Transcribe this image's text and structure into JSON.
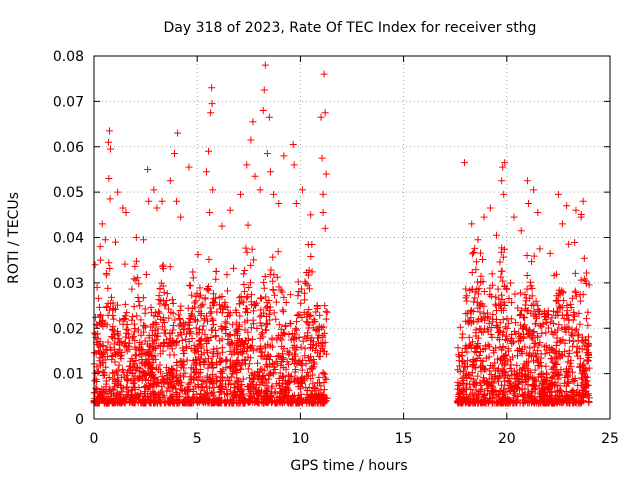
{
  "chart_data": {
    "type": "scatter",
    "title": "Day 318 of 2023, Rate Of TEC Index for receiver sthg",
    "xlabel": "GPS time / hours",
    "ylabel": "ROTI / TECUs",
    "xlim": [
      0,
      25
    ],
    "ylim": [
      0,
      0.08
    ],
    "x_ticks": [
      0,
      5,
      10,
      15,
      20,
      25
    ],
    "y_ticks": [
      0,
      0.01,
      0.02,
      0.03,
      0.04,
      0.05,
      0.06,
      0.07,
      0.08
    ],
    "x_tick_labels": [
      "0",
      "5",
      "10",
      "15",
      "20",
      "25"
    ],
    "y_tick_labels": [
      "0",
      "0.01",
      "0.02",
      "0.03",
      "0.04",
      "0.05",
      "0.06",
      "0.07",
      "0.08"
    ],
    "grid": true,
    "marker": "+",
    "marker_color": "#ff0000",
    "data_gap_hours": [
      11.3,
      17.6
    ],
    "series": [
      {
        "name": "ROTI",
        "points": [
          [
            0.05,
            0.034
          ],
          [
            0.15,
            0.029
          ],
          [
            0.3,
            0.038
          ],
          [
            0.4,
            0.043
          ],
          [
            0.55,
            0.0395
          ],
          [
            0.7,
            0.061
          ],
          [
            0.75,
            0.0635
          ],
          [
            0.8,
            0.0595
          ],
          [
            0.72,
            0.053
          ],
          [
            0.78,
            0.0485
          ],
          [
            1.15,
            0.05
          ],
          [
            1.4,
            0.0465
          ],
          [
            1.55,
            0.0455
          ],
          [
            2.05,
            0.04
          ],
          [
            2.4,
            0.0395
          ],
          [
            2.6,
            0.055
          ],
          [
            2.65,
            0.048
          ],
          [
            2.9,
            0.0505
          ],
          [
            3.05,
            0.0465
          ],
          [
            3.3,
            0.048
          ],
          [
            3.7,
            0.0525
          ],
          [
            3.9,
            0.0585
          ],
          [
            4.05,
            0.063
          ],
          [
            4.0,
            0.048
          ],
          [
            4.2,
            0.0445
          ],
          [
            4.6,
            0.0555
          ],
          [
            5.45,
            0.0545
          ],
          [
            5.55,
            0.059
          ],
          [
            5.65,
            0.0675
          ],
          [
            5.7,
            0.073
          ],
          [
            5.72,
            0.0695
          ],
          [
            5.6,
            0.0455
          ],
          [
            5.75,
            0.0505
          ],
          [
            6.2,
            0.0425
          ],
          [
            6.6,
            0.046
          ],
          [
            7.1,
            0.0495
          ],
          [
            7.4,
            0.056
          ],
          [
            7.6,
            0.0615
          ],
          [
            7.7,
            0.0655
          ],
          [
            7.8,
            0.0535
          ],
          [
            8.05,
            0.0505
          ],
          [
            8.2,
            0.068
          ],
          [
            8.25,
            0.0725
          ],
          [
            8.3,
            0.078
          ],
          [
            8.4,
            0.0585
          ],
          [
            8.5,
            0.0665
          ],
          [
            8.55,
            0.0545
          ],
          [
            8.7,
            0.0495
          ],
          [
            8.95,
            0.0475
          ],
          [
            9.2,
            0.058
          ],
          [
            9.65,
            0.0605
          ],
          [
            9.7,
            0.056
          ],
          [
            9.8,
            0.0475
          ],
          [
            10.1,
            0.0505
          ],
          [
            10.5,
            0.045
          ],
          [
            11.0,
            0.0665
          ],
          [
            11.05,
            0.0575
          ],
          [
            11.1,
            0.0495
          ],
          [
            11.15,
            0.076
          ],
          [
            11.2,
            0.0675
          ],
          [
            11.25,
            0.054
          ],
          [
            11.1,
            0.0455
          ],
          [
            11.2,
            0.042
          ],
          [
            17.95,
            0.0565
          ],
          [
            18.3,
            0.043
          ],
          [
            18.6,
            0.0395
          ],
          [
            18.9,
            0.0445
          ],
          [
            19.2,
            0.0465
          ],
          [
            19.5,
            0.0405
          ],
          [
            19.75,
            0.0525
          ],
          [
            19.8,
            0.0555
          ],
          [
            19.85,
            0.0495
          ],
          [
            19.9,
            0.0565
          ],
          [
            20.35,
            0.0445
          ],
          [
            20.7,
            0.0415
          ],
          [
            21.0,
            0.0525
          ],
          [
            21.05,
            0.0475
          ],
          [
            21.3,
            0.0505
          ],
          [
            21.5,
            0.0455
          ],
          [
            21.6,
            0.0375
          ],
          [
            22.1,
            0.0365
          ],
          [
            22.5,
            0.0495
          ],
          [
            22.7,
            0.043
          ],
          [
            22.9,
            0.047
          ],
          [
            23.0,
            0.0385
          ],
          [
            23.35,
            0.046
          ],
          [
            23.6,
            0.0445
          ],
          [
            23.7,
            0.048
          ]
        ]
      }
    ]
  }
}
